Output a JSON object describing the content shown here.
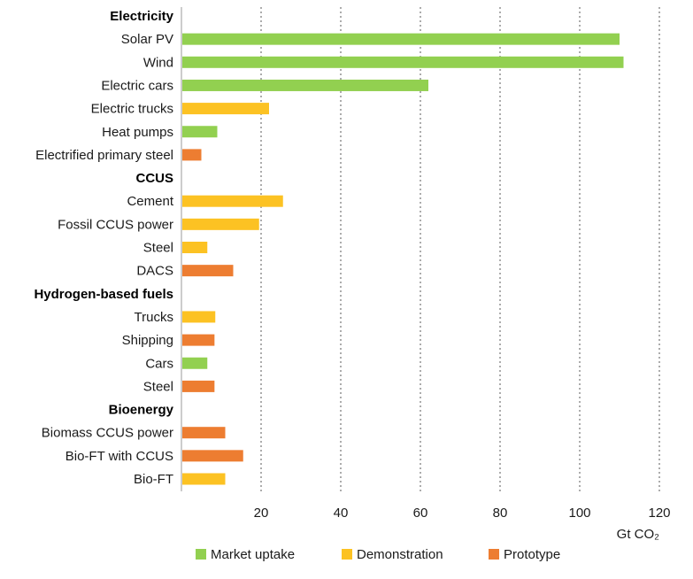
{
  "chart_data": {
    "type": "bar",
    "orientation": "horizontal",
    "title": "",
    "xlabel": "",
    "ylabel": "",
    "unit_label": "Gt CO₂",
    "xlim": [
      0,
      120
    ],
    "x_ticks": [
      20,
      40,
      60,
      80,
      100,
      120
    ],
    "grid": "vertical dashed",
    "legend_position": "bottom",
    "stages": [
      {
        "key": "market",
        "name": "Market uptake",
        "color": "#92d050"
      },
      {
        "key": "demo",
        "name": "Demonstration",
        "color": "#fcc223"
      },
      {
        "key": "proto",
        "name": "Prototype",
        "color": "#ed7d31"
      }
    ],
    "groups": [
      {
        "name": "Electricity",
        "items": [
          {
            "label": "Solar PV",
            "value": 110,
            "stage": "market"
          },
          {
            "label": "Wind",
            "value": 111,
            "stage": "market"
          },
          {
            "label": "Electric cars",
            "value": 62,
            "stage": "market"
          },
          {
            "label": "Electric trucks",
            "value": 22,
            "stage": "demo"
          },
          {
            "label": "Heat pumps",
            "value": 9,
            "stage": "market"
          },
          {
            "label": "Electrified primary steel",
            "value": 5,
            "stage": "proto"
          }
        ]
      },
      {
        "name": "CCUS",
        "items": [
          {
            "label": "Cement",
            "value": 25.5,
            "stage": "demo"
          },
          {
            "label": "Fossil CCUS power",
            "value": 19.5,
            "stage": "demo"
          },
          {
            "label": "Steel",
            "value": 6.5,
            "stage": "demo"
          },
          {
            "label": "DACS",
            "value": 13,
            "stage": "proto"
          }
        ]
      },
      {
        "name": "Hydrogen-based fuels",
        "items": [
          {
            "label": "Trucks",
            "value": 8.5,
            "stage": "demo"
          },
          {
            "label": "Shipping",
            "value": 8.3,
            "stage": "proto"
          },
          {
            "label": "Cars",
            "value": 6.5,
            "stage": "market"
          },
          {
            "label": "Steel",
            "value": 8.3,
            "stage": "proto"
          }
        ]
      },
      {
        "name": "Bioenergy",
        "items": [
          {
            "label": "Biomass CCUS power",
            "value": 11,
            "stage": "proto"
          },
          {
            "label": "Bio-FT with CCUS",
            "value": 15.5,
            "stage": "proto"
          },
          {
            "label": "Bio-FT",
            "value": 11,
            "stage": "demo"
          }
        ]
      }
    ]
  }
}
